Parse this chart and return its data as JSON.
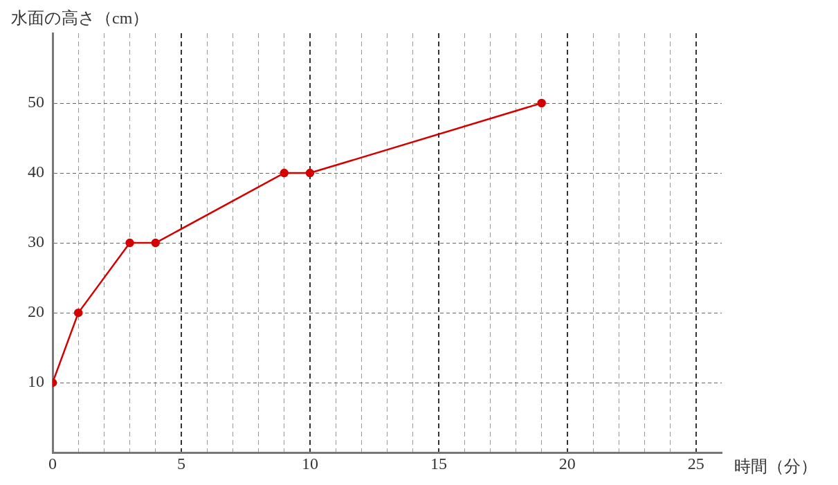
{
  "chart_data": {
    "type": "line",
    "xlabel": "時間（分）",
    "ylabel": "水面の高さ（cm）",
    "x": [
      0,
      1,
      3,
      4,
      9,
      10,
      19
    ],
    "series": [
      {
        "color": "#d40000",
        "values": [
          10,
          20,
          30,
          30,
          40,
          40,
          50
        ]
      }
    ],
    "xlim": [
      0,
      26
    ],
    "xticks": [
      0,
      {
        "value": 1,
        "label": null
      },
      {
        "value": 2,
        "label": null
      },
      {
        "value": 3,
        "label": null
      },
      {
        "value": 4,
        "label": null
      },
      5,
      {
        "value": 6,
        "label": null
      },
      {
        "value": 7,
        "label": null
      },
      {
        "value": 8,
        "label": null
      },
      {
        "value": 9,
        "label": null
      },
      10,
      {
        "value": 11,
        "label": null
      },
      {
        "value": 12,
        "label": null
      },
      {
        "value": 13,
        "label": null
      },
      {
        "value": 14,
        "label": null
      },
      15,
      {
        "value": 16,
        "label": null
      },
      {
        "value": 17,
        "label": null
      },
      {
        "value": 18,
        "label": null
      },
      {
        "value": 19,
        "label": null
      },
      20,
      {
        "value": 21,
        "label": null
      },
      {
        "value": 22,
        "label": null
      },
      {
        "value": 23,
        "label": null
      },
      {
        "value": 24,
        "label": null
      },
      25
    ],
    "ylim": [
      0,
      60
    ],
    "yticks": [
      10,
      20,
      30,
      40,
      50
    ],
    "grid": true,
    "legend": false,
    "marker": "circle",
    "line_style": "solid"
  }
}
